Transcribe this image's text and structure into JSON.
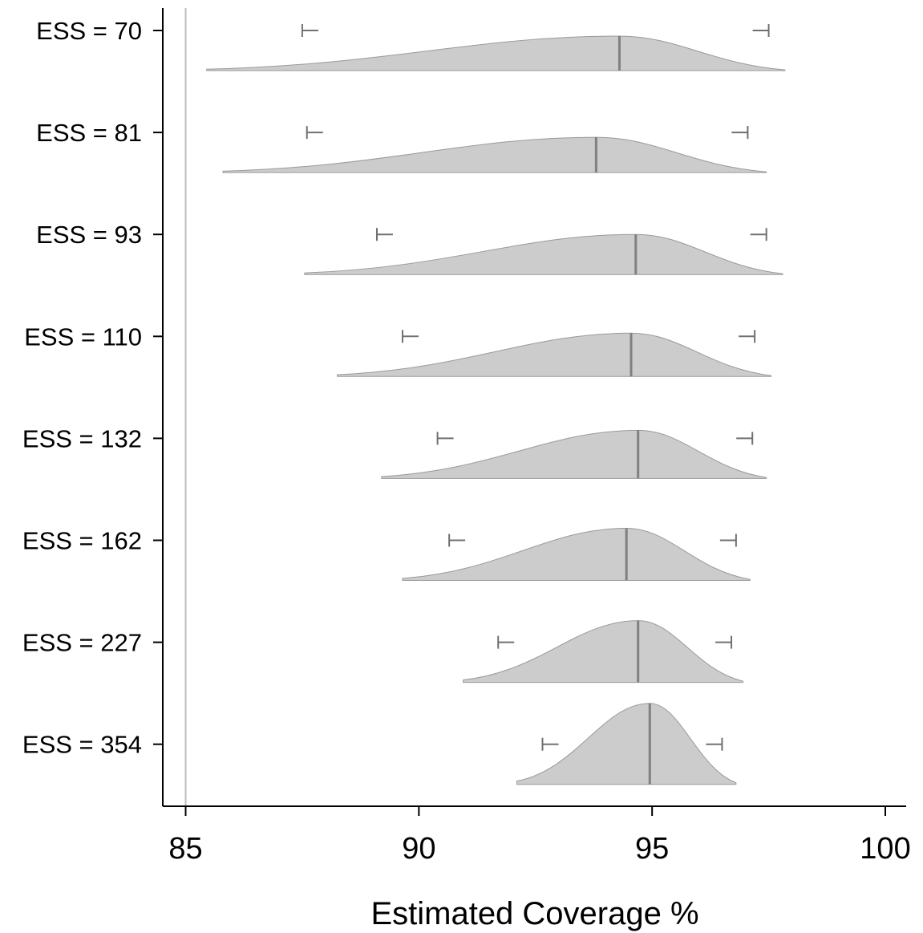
{
  "chart_data": {
    "type": "ridgeline",
    "title": "",
    "xlabel": "Estimated Coverage %",
    "ylabel": "",
    "xlim": [
      84.5,
      100.5
    ],
    "xticks": [
      85,
      90,
      95,
      100
    ],
    "reference_line": 85,
    "grid": false,
    "colors": {
      "fill": "#cccccc",
      "stroke": "#9a9a9a",
      "median": "#808080",
      "whisker": "#707070",
      "axis": "#000000",
      "reference": "#bdbdbd"
    },
    "series": [
      {
        "name": "ESS = 70",
        "min": 85.45,
        "max": 97.85,
        "median": 94.3,
        "whisker_low": 87.5,
        "whisker_high": 97.5,
        "density_shape": 1.0
      },
      {
        "name": "ESS = 81",
        "min": 85.8,
        "max": 97.45,
        "median": 93.8,
        "whisker_low": 87.6,
        "whisker_high": 97.05,
        "density_shape": 1.0
      },
      {
        "name": "ESS = 93",
        "min": 87.55,
        "max": 97.8,
        "median": 94.65,
        "whisker_low": 89.1,
        "whisker_high": 97.45,
        "density_shape": 1.0
      },
      {
        "name": "ESS = 110",
        "min": 88.25,
        "max": 97.55,
        "median": 94.55,
        "whisker_low": 89.65,
        "whisker_high": 97.2,
        "density_shape": 1.0
      },
      {
        "name": "ESS = 132",
        "min": 89.2,
        "max": 97.45,
        "median": 94.7,
        "whisker_low": 90.4,
        "whisker_high": 97.15,
        "density_shape": 1.0
      },
      {
        "name": "ESS = 162",
        "min": 89.65,
        "max": 97.1,
        "median": 94.45,
        "whisker_low": 90.65,
        "whisker_high": 96.8,
        "density_shape": 1.0
      },
      {
        "name": "ESS = 227",
        "min": 90.95,
        "max": 96.95,
        "median": 94.7,
        "whisker_low": 91.7,
        "whisker_high": 96.7,
        "density_shape": 1.0
      },
      {
        "name": "ESS = 354",
        "min": 92.1,
        "max": 96.8,
        "median": 94.95,
        "whisker_low": 92.65,
        "whisker_high": 96.5,
        "density_shape": 1.0
      }
    ]
  }
}
